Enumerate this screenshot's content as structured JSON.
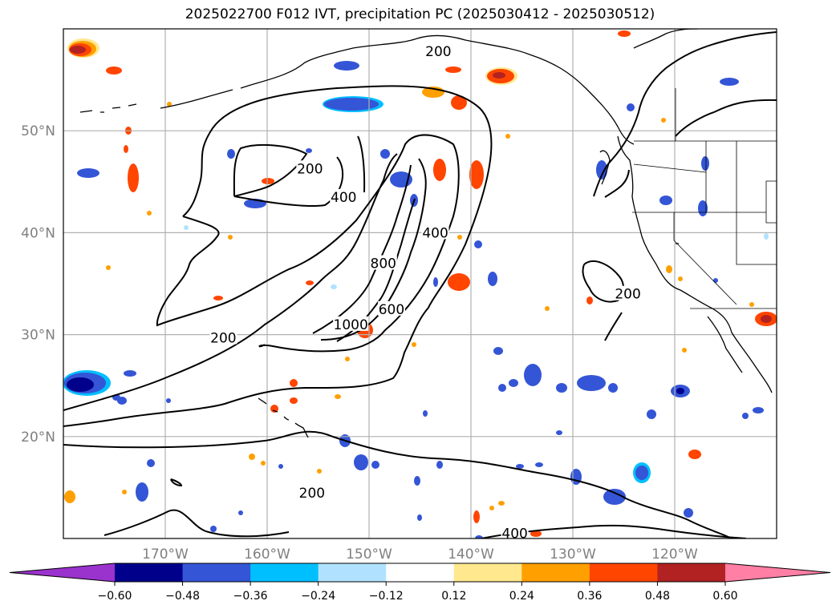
{
  "title": "2025022700 F012 IVT, precipitation PC (2025030412 - 2025030512)",
  "map": {
    "projection": "plate carree",
    "lon_range": [
      -180,
      -110
    ],
    "lat_range": [
      10,
      60
    ],
    "gridlines": true,
    "lat_ticks": [
      {
        "value": 50,
        "label": "50°N"
      },
      {
        "value": 40,
        "label": "40°N"
      },
      {
        "value": 30,
        "label": "30°N"
      },
      {
        "value": 20,
        "label": "20°N"
      }
    ],
    "lon_ticks": [
      {
        "value": -170,
        "label": "170°W"
      },
      {
        "value": -160,
        "label": "160°W"
      },
      {
        "value": -150,
        "label": "150°W"
      },
      {
        "value": -140,
        "label": "140°W"
      },
      {
        "value": -130,
        "label": "130°W"
      },
      {
        "value": -120,
        "label": "120°W"
      }
    ],
    "ivt_contour_labels": [
      {
        "text": "200",
        "lon": -143.2,
        "lat": 57.8
      },
      {
        "text": "200",
        "lon": -155.8,
        "lat": 46.3
      },
      {
        "text": "400",
        "lon": -152.5,
        "lat": 43.5
      },
      {
        "text": "800",
        "lon": -148.6,
        "lat": 37.0
      },
      {
        "text": "400",
        "lon": -143.5,
        "lat": 40.0
      },
      {
        "text": "600",
        "lon": -147.8,
        "lat": 32.5
      },
      {
        "text": "1000",
        "lon": -151.8,
        "lat": 31.0
      },
      {
        "text": "200",
        "lon": -164.3,
        "lat": 29.7
      },
      {
        "text": "200",
        "lon": -124.6,
        "lat": 34.0
      },
      {
        "text": "200",
        "lon": -155.6,
        "lat": 14.5
      },
      {
        "text": "400",
        "lon": -135.7,
        "lat": 10.5
      }
    ]
  },
  "colorbar": {
    "extend": "both",
    "tick_labels": [
      "−0.60",
      "−0.48",
      "−0.36",
      "−0.24",
      "−0.12",
      "0.12",
      "0.24",
      "0.36",
      "0.48",
      "0.60"
    ],
    "colors": [
      "#9a32cd",
      "#00008b",
      "#3455d6",
      "#00bfff",
      "#b0e2ff",
      "#ffffff",
      "#ffe88e",
      "#ff9f00",
      "#ff4500",
      "#b22222",
      "#ff7fa5"
    ]
  }
}
